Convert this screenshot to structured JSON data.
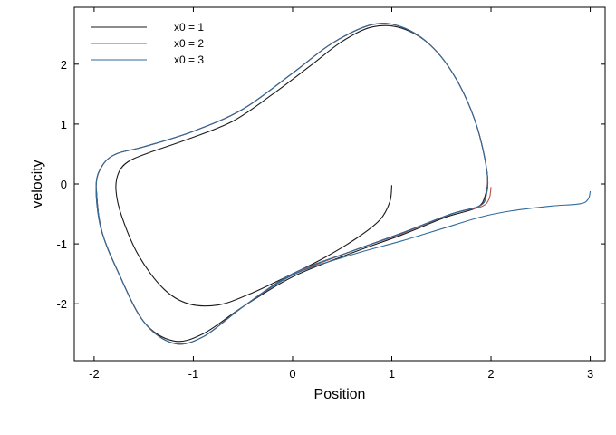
{
  "chart_data": {
    "type": "line",
    "title": "",
    "xlabel": "Position",
    "ylabel": "velocity",
    "xlim": [
      -2.2,
      3.15
    ],
    "ylim": [
      -2.95,
      2.95
    ],
    "xticks": [
      -2,
      -1,
      0,
      1,
      2,
      3
    ],
    "yticks": [
      -2,
      -1,
      0,
      1,
      2
    ],
    "grid": false,
    "legend": "top-left",
    "series": [
      {
        "name": "x0 = 1",
        "color": "#1a1a1a",
        "points": [
          [
            1.0,
            -0.02
          ],
          [
            0.98,
            -0.3
          ],
          [
            0.88,
            -0.6
          ],
          [
            0.65,
            -0.9
          ],
          [
            0.3,
            -1.25
          ],
          [
            -0.1,
            -1.58
          ],
          [
            -0.45,
            -1.85
          ],
          [
            -0.75,
            -2.02
          ],
          [
            -1.05,
            -2.0
          ],
          [
            -1.3,
            -1.75
          ],
          [
            -1.55,
            -1.2
          ],
          [
            -1.72,
            -0.55
          ],
          [
            -1.78,
            -0.1
          ],
          [
            -1.75,
            0.2
          ],
          [
            -1.65,
            0.38
          ],
          [
            -1.45,
            0.52
          ],
          [
            -1.05,
            0.75
          ],
          [
            -0.6,
            1.05
          ],
          [
            -0.2,
            1.5
          ],
          [
            0.2,
            2.0
          ],
          [
            0.5,
            2.38
          ],
          [
            0.8,
            2.62
          ],
          [
            1.1,
            2.6
          ],
          [
            1.4,
            2.3
          ],
          [
            1.65,
            1.75
          ],
          [
            1.85,
            1.0
          ],
          [
            1.96,
            0.2
          ],
          [
            1.94,
            -0.2
          ],
          [
            1.85,
            -0.4
          ],
          [
            1.55,
            -0.55
          ],
          [
            1.1,
            -0.85
          ],
          [
            0.6,
            -1.15
          ],
          [
            0.0,
            -1.55
          ],
          [
            -0.5,
            -2.05
          ],
          [
            -0.9,
            -2.5
          ],
          [
            -1.2,
            -2.62
          ],
          [
            -1.5,
            -2.3
          ],
          [
            -1.75,
            -1.5
          ],
          [
            -1.92,
            -0.8
          ],
          [
            -1.98,
            -0.05
          ],
          [
            -1.92,
            0.3
          ],
          [
            -1.78,
            0.5
          ],
          [
            -1.5,
            0.62
          ],
          [
            -1.0,
            0.88
          ],
          [
            -0.5,
            1.25
          ],
          [
            0.0,
            1.85
          ],
          [
            0.4,
            2.35
          ],
          [
            0.8,
            2.66
          ],
          [
            1.1,
            2.62
          ],
          [
            1.4,
            2.3
          ],
          [
            1.65,
            1.75
          ],
          [
            1.85,
            1.0
          ],
          [
            1.96,
            0.2
          ],
          [
            1.95,
            -0.2
          ],
          [
            1.88,
            -0.37
          ],
          [
            1.6,
            -0.5
          ],
          [
            1.1,
            -0.82
          ],
          [
            0.6,
            -1.12
          ],
          [
            0.0,
            -1.5
          ],
          [
            -0.5,
            -2.05
          ],
          [
            -0.9,
            -2.55
          ],
          [
            -1.2,
            -2.66
          ],
          [
            -1.5,
            -2.3
          ],
          [
            -1.75,
            -1.5
          ],
          [
            -1.93,
            -0.75
          ],
          [
            -1.98,
            -0.05
          ]
        ]
      },
      {
        "name": "x0 = 2",
        "color": "#b5504a",
        "points": [
          [
            2.0,
            -0.05
          ],
          [
            1.98,
            -0.25
          ],
          [
            1.9,
            -0.38
          ],
          [
            1.6,
            -0.5
          ],
          [
            1.1,
            -0.83
          ],
          [
            0.6,
            -1.12
          ],
          [
            0.0,
            -1.52
          ],
          [
            -0.5,
            -2.05
          ],
          [
            -0.9,
            -2.55
          ],
          [
            -1.2,
            -2.66
          ],
          [
            -1.5,
            -2.3
          ],
          [
            -1.75,
            -1.5
          ],
          [
            -1.93,
            -0.75
          ],
          [
            -1.98,
            -0.05
          ],
          [
            -1.92,
            0.3
          ],
          [
            -1.78,
            0.5
          ],
          [
            -1.5,
            0.62
          ],
          [
            -1.0,
            0.88
          ],
          [
            -0.5,
            1.25
          ],
          [
            0.0,
            1.85
          ],
          [
            0.4,
            2.35
          ],
          [
            0.8,
            2.66
          ],
          [
            1.1,
            2.62
          ],
          [
            1.4,
            2.3
          ],
          [
            1.65,
            1.75
          ],
          [
            1.85,
            1.0
          ],
          [
            1.96,
            0.2
          ],
          [
            1.95,
            -0.2
          ],
          [
            1.88,
            -0.37
          ],
          [
            1.6,
            -0.5
          ],
          [
            1.1,
            -0.82
          ],
          [
            0.6,
            -1.12
          ],
          [
            0.0,
            -1.5
          ],
          [
            -0.5,
            -2.05
          ],
          [
            -0.9,
            -2.55
          ],
          [
            -1.2,
            -2.66
          ],
          [
            -1.5,
            -2.3
          ],
          [
            -1.75,
            -1.5
          ],
          [
            -1.93,
            -0.75
          ],
          [
            -1.98,
            -0.05
          ]
        ]
      },
      {
        "name": "x0 = 3",
        "color": "#2f6a9a",
        "points": [
          [
            3.0,
            -0.12
          ],
          [
            2.98,
            -0.25
          ],
          [
            2.9,
            -0.33
          ],
          [
            2.6,
            -0.37
          ],
          [
            2.2,
            -0.45
          ],
          [
            1.9,
            -0.55
          ],
          [
            1.5,
            -0.75
          ],
          [
            1.1,
            -0.95
          ],
          [
            0.6,
            -1.18
          ],
          [
            0.0,
            -1.52
          ],
          [
            -0.5,
            -2.05
          ],
          [
            -0.9,
            -2.55
          ],
          [
            -1.2,
            -2.66
          ],
          [
            -1.5,
            -2.3
          ],
          [
            -1.75,
            -1.5
          ],
          [
            -1.93,
            -0.75
          ],
          [
            -1.98,
            -0.05
          ],
          [
            -1.92,
            0.3
          ],
          [
            -1.78,
            0.5
          ],
          [
            -1.5,
            0.62
          ],
          [
            -1.0,
            0.88
          ],
          [
            -0.5,
            1.25
          ],
          [
            0.0,
            1.85
          ],
          [
            0.4,
            2.35
          ],
          [
            0.8,
            2.66
          ],
          [
            1.1,
            2.62
          ],
          [
            1.4,
            2.3
          ],
          [
            1.65,
            1.75
          ],
          [
            1.85,
            1.0
          ],
          [
            1.96,
            0.2
          ],
          [
            1.95,
            -0.2
          ],
          [
            1.88,
            -0.37
          ],
          [
            1.6,
            -0.5
          ],
          [
            1.1,
            -0.82
          ],
          [
            0.6,
            -1.12
          ],
          [
            0.0,
            -1.5
          ],
          [
            -0.5,
            -2.05
          ],
          [
            -0.9,
            -2.55
          ],
          [
            -1.2,
            -2.66
          ],
          [
            -1.5,
            -2.3
          ],
          [
            -1.75,
            -1.5
          ],
          [
            -1.93,
            -0.75
          ],
          [
            -1.98,
            -0.05
          ]
        ]
      }
    ]
  }
}
